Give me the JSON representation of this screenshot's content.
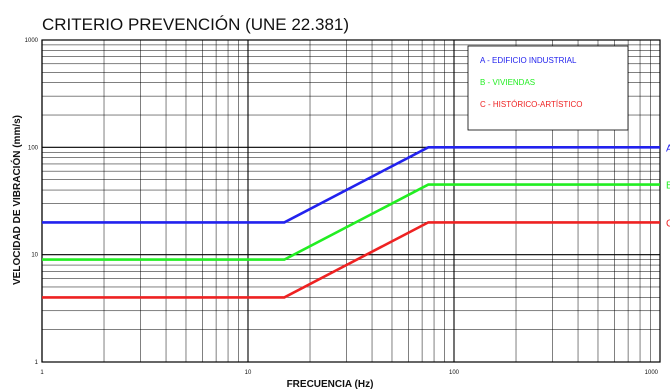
{
  "chart_data": {
    "type": "line",
    "title": "CRITERIO PREVENCIÓN (UNE 22.381)",
    "xlabel": "FRECUENCIA (Hz)",
    "ylabel": "VELOCIDAD DE VIBRACIÓN (mm/s)",
    "xscale": "log",
    "yscale": "log",
    "xlim": [
      1,
      1000
    ],
    "ylim": [
      1,
      1000
    ],
    "grid": true,
    "legend_position": "top-right",
    "x_ticks": [
      "1",
      "10",
      "100",
      "1000"
    ],
    "y_ticks": [
      "1000",
      "100",
      "10",
      "1"
    ],
    "series": [
      {
        "name": "A - EDIFICIO INDUSTRIAL",
        "end_label": "A",
        "color": "#2222ee",
        "x": [
          1,
          15,
          75,
          1000
        ],
        "y": [
          20,
          20,
          100,
          100
        ]
      },
      {
        "name": "B - VIVIENDAS",
        "end_label": "B",
        "color": "#22ee22",
        "x": [
          1,
          15,
          75,
          1000
        ],
        "y": [
          9,
          9,
          45,
          45
        ]
      },
      {
        "name": "C - HISTÓRICO-ARTÍSTICO",
        "end_label": "C",
        "color": "#ee2222",
        "x": [
          1,
          15,
          75,
          1000
        ],
        "y": [
          4,
          4,
          20,
          20
        ]
      }
    ]
  }
}
